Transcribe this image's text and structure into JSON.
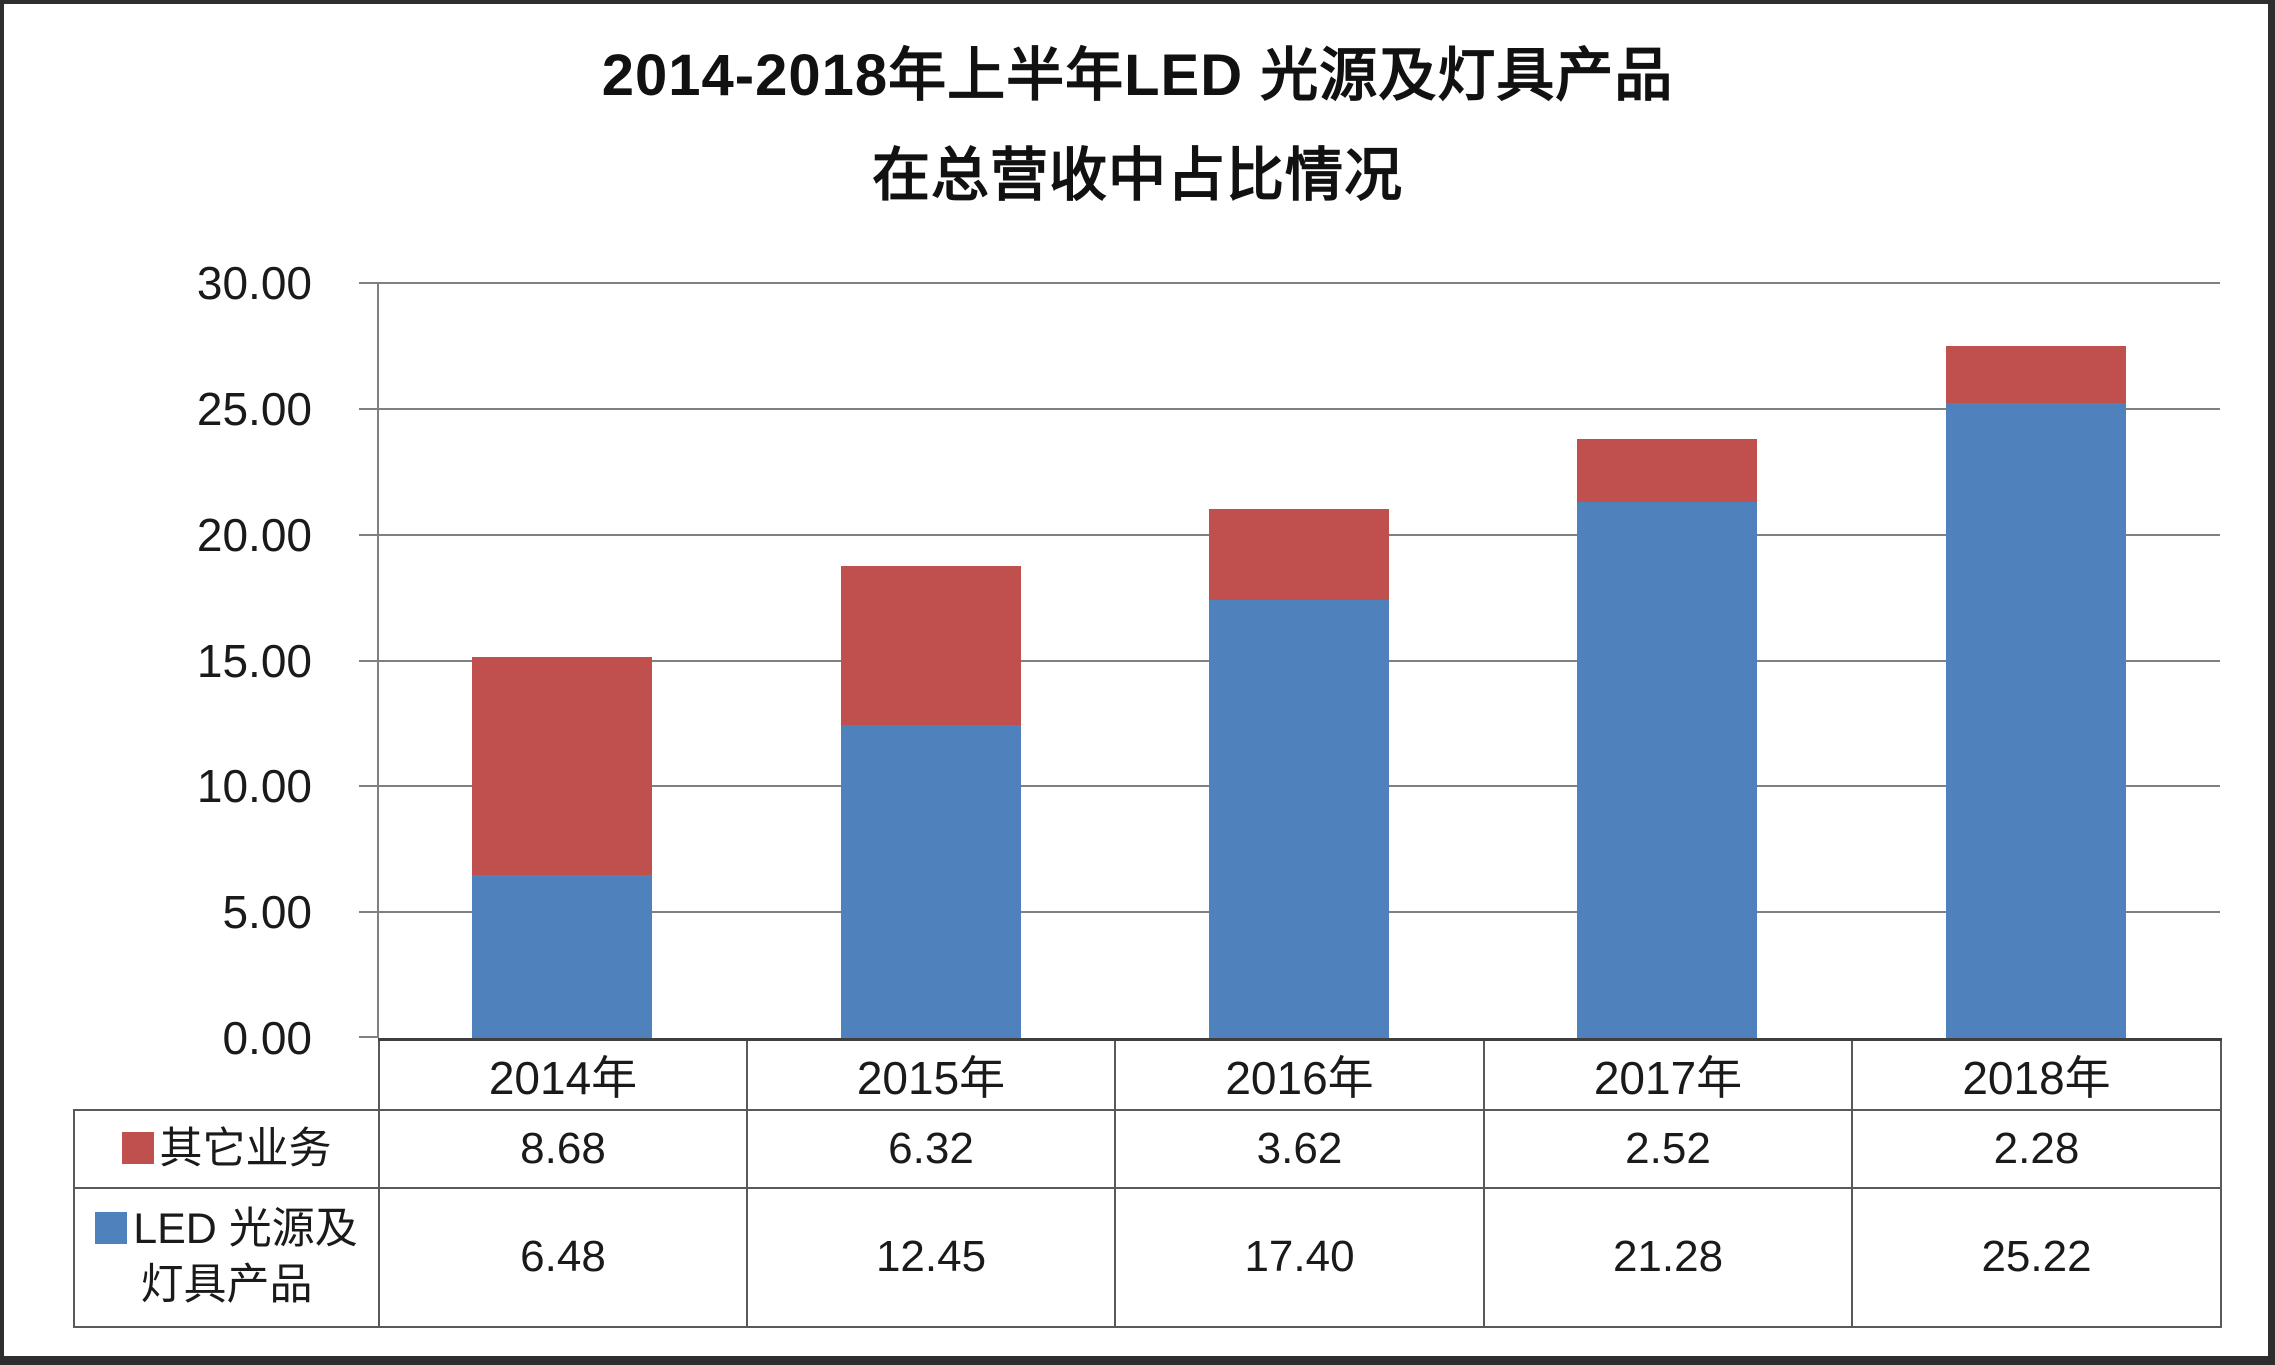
{
  "title": {
    "line1": "2014-2018年上半年LED 光源及灯具产品",
    "line2": "在总营收中占比情况"
  },
  "chart_data": {
    "type": "bar",
    "stacked": true,
    "title": "2014-2018年上半年LED 光源及灯具产品在总营收中占比情况",
    "categories": [
      "2014年",
      "2015年",
      "2016年",
      "2017年",
      "2018年"
    ],
    "series": [
      {
        "name": "其它业务",
        "color": "#C0504D",
        "stack_order": "top",
        "values": [
          8.68,
          6.32,
          3.62,
          2.52,
          2.28
        ],
        "display_values": [
          "8.68",
          "6.32",
          "3.62",
          "2.52",
          "2.28"
        ]
      },
      {
        "name": "LED 光源及灯具产品",
        "color": "#4F81BD",
        "stack_order": "bottom",
        "values": [
          6.48,
          12.45,
          17.4,
          21.28,
          25.22
        ],
        "display_values": [
          "6.48",
          "12.45",
          "17.40",
          "21.28",
          "25.22"
        ]
      }
    ],
    "xlabel": "",
    "ylabel": "",
    "ylim": [
      0,
      30
    ],
    "y_ticks": [
      0,
      5,
      10,
      15,
      20,
      25,
      30
    ],
    "y_tick_labels": [
      "0.00",
      "5.00",
      "10.00",
      "15.00",
      "20.00",
      "25.00",
      "30.00"
    ],
    "grid": true,
    "gridline_color": "#808080",
    "legend_position": "data-table-left"
  }
}
